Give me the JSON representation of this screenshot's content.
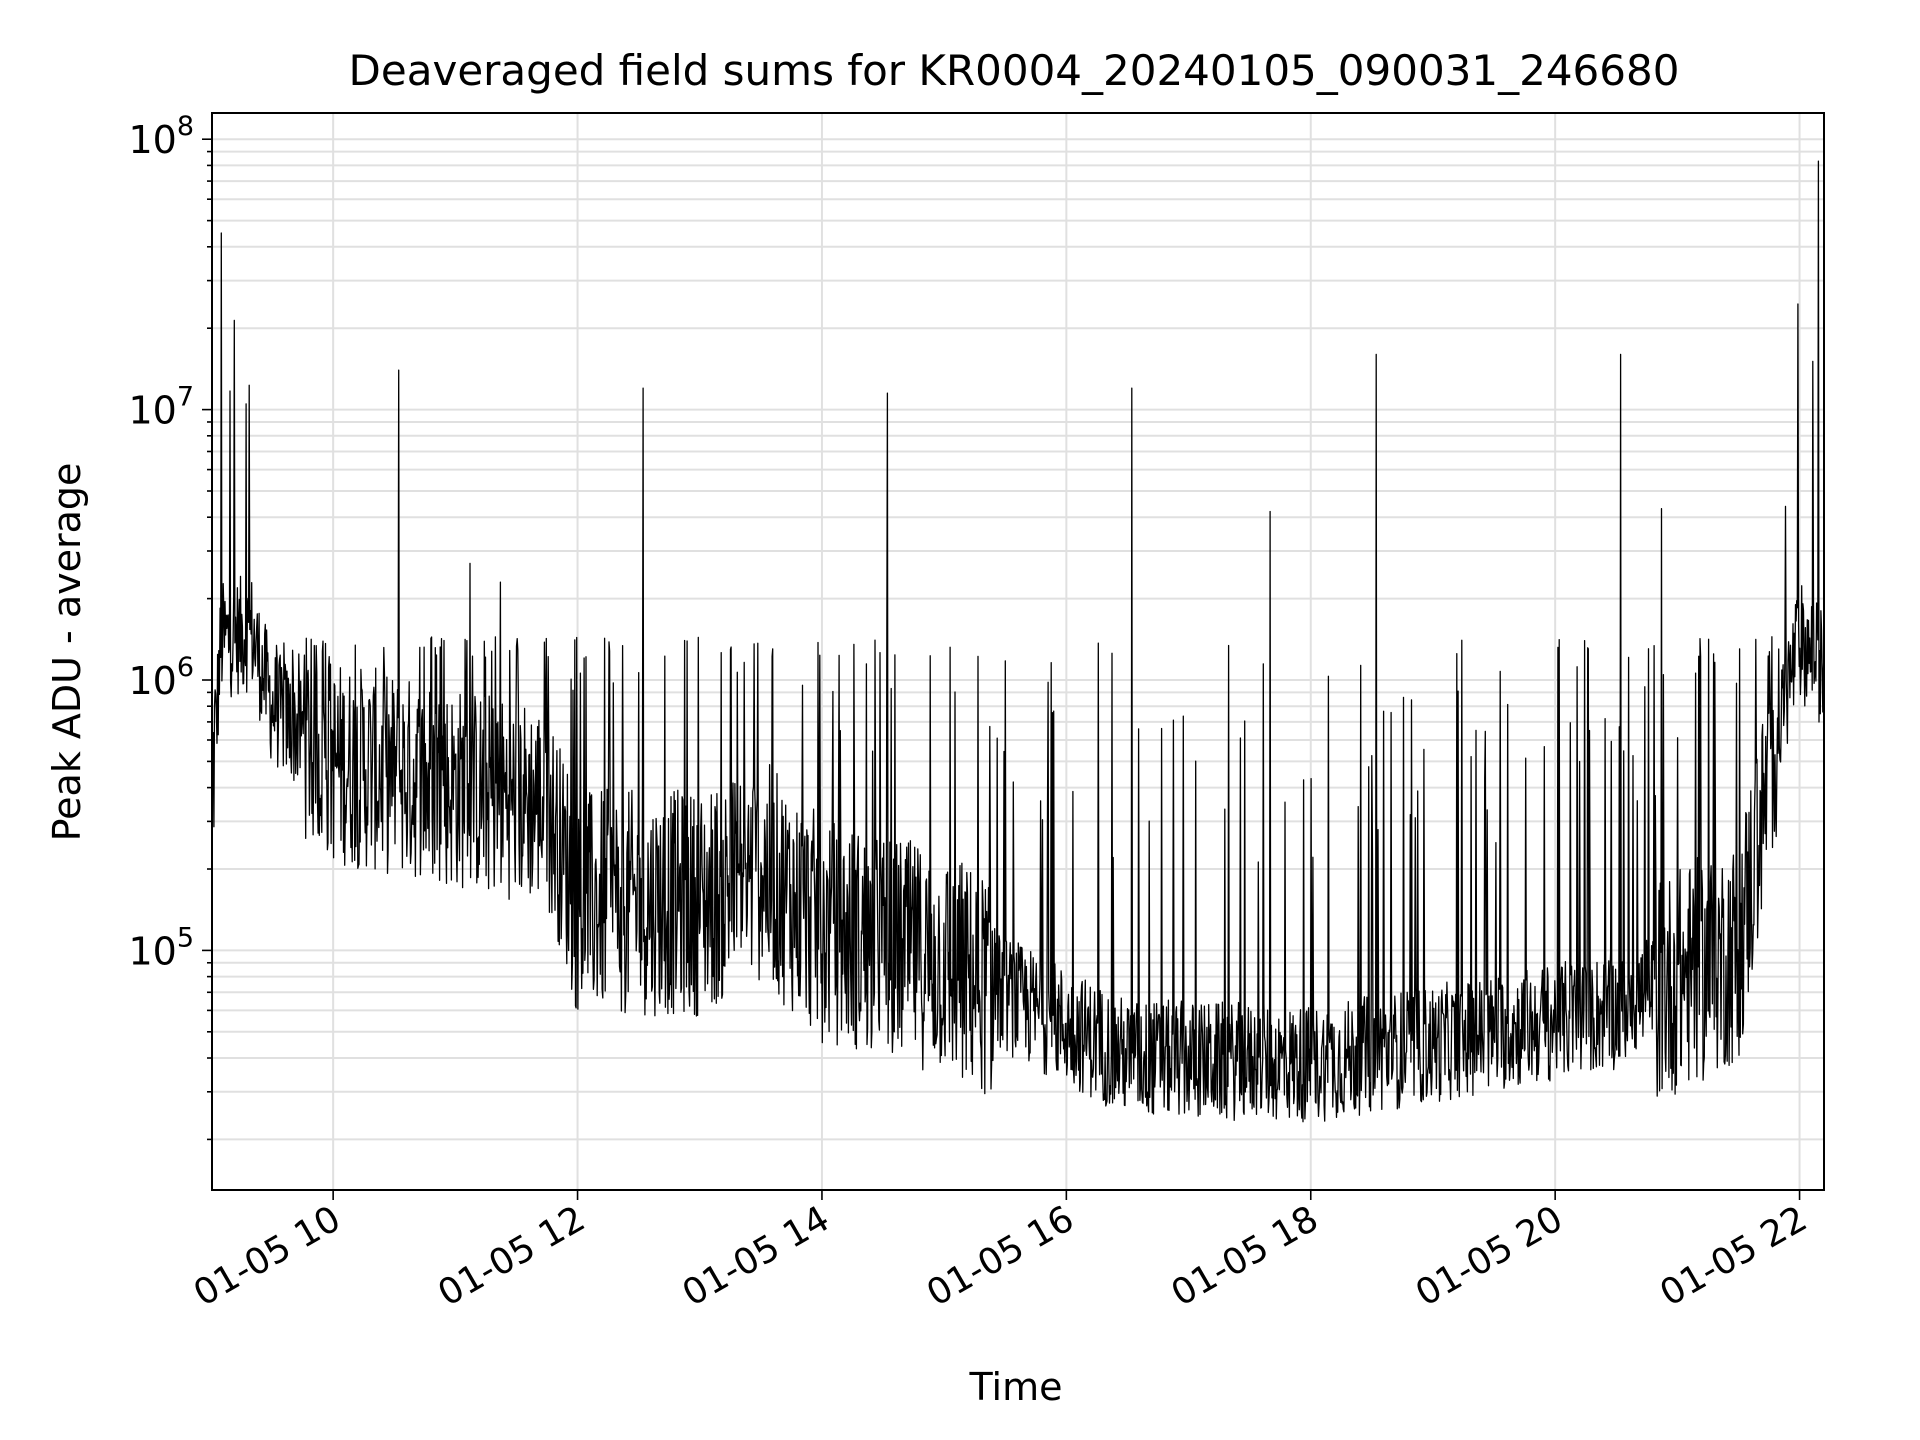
{
  "chart_data": {
    "type": "line",
    "title": "Deaveraged field sums for KR0004_20240105_090031_246680",
    "xlabel": "Time",
    "ylabel": "Peak ADU - average",
    "yscale": "log",
    "ylim": [
      13000,
      125000000
    ],
    "xlim": [
      "2024-01-05 09:00:31",
      "2024-01-05 22:12:00"
    ],
    "grid": true,
    "x_ticks": [
      "01-05 10",
      "01-05 12",
      "01-05 14",
      "01-05 16",
      "01-05 18",
      "01-05 20",
      "01-05 22"
    ],
    "y_ticks": [
      {
        "base": "10",
        "exp": "5",
        "value": 100000
      },
      {
        "base": "10",
        "exp": "6",
        "value": 1000000
      },
      {
        "base": "10",
        "exp": "7",
        "value": 10000000
      },
      {
        "base": "10",
        "exp": "8",
        "value": 100000000
      }
    ],
    "line_color": "#000000",
    "grid_color": "#e0e0e0",
    "baseline": [
      {
        "t": "2024-01-05 09:01",
        "v": 450000
      },
      {
        "t": "2024-01-05 09:05",
        "v": 1400000
      },
      {
        "t": "2024-01-05 09:20",
        "v": 1500000
      },
      {
        "t": "2024-01-05 09:30",
        "v": 800000
      },
      {
        "t": "2024-01-05 10:00",
        "v": 500000
      },
      {
        "t": "2024-01-05 11:00",
        "v": 400000
      },
      {
        "t": "2024-01-05 11:45",
        "v": 350000
      },
      {
        "t": "2024-01-05 12:00",
        "v": 150000
      },
      {
        "t": "2024-01-05 13:00",
        "v": 150000
      },
      {
        "t": "2024-01-05 13:30",
        "v": 200000
      },
      {
        "t": "2024-01-05 14:00",
        "v": 120000
      },
      {
        "t": "2024-01-05 15:00",
        "v": 90000
      },
      {
        "t": "2024-01-05 15:45",
        "v": 60000
      },
      {
        "t": "2024-01-05 16:30",
        "v": 40000
      },
      {
        "t": "2024-01-05 18:00",
        "v": 38000
      },
      {
        "t": "2024-01-05 19:00",
        "v": 45000
      },
      {
        "t": "2024-01-05 20:30",
        "v": 60000
      },
      {
        "t": "2024-01-05 21:30",
        "v": 100000
      },
      {
        "t": "2024-01-05 21:50",
        "v": 700000
      },
      {
        "t": "2024-01-05 22:00",
        "v": 1400000
      },
      {
        "t": "2024-01-05 22:12",
        "v": 1100000
      }
    ],
    "spikes": [
      {
        "t": "2024-01-05 09:05",
        "v": 45000000
      },
      {
        "t": "2024-01-05 09:17",
        "v": 10500000
      },
      {
        "t": "2024-01-05 10:32",
        "v": 14000000
      },
      {
        "t": "2024-01-05 11:07",
        "v": 2700000
      },
      {
        "t": "2024-01-05 11:22",
        "v": 2300000
      },
      {
        "t": "2024-01-05 12:32",
        "v": 12000000
      },
      {
        "t": "2024-01-05 14:32",
        "v": 11500000
      },
      {
        "t": "2024-01-05 16:32",
        "v": 12000000
      },
      {
        "t": "2024-01-05 17:40",
        "v": 4200000
      },
      {
        "t": "2024-01-05 18:32",
        "v": 16000000
      },
      {
        "t": "2024-01-05 20:32",
        "v": 16000000
      },
      {
        "t": "2024-01-05 20:52",
        "v": 4300000
      },
      {
        "t": "2024-01-05 22:09",
        "v": 83000000
      }
    ]
  }
}
